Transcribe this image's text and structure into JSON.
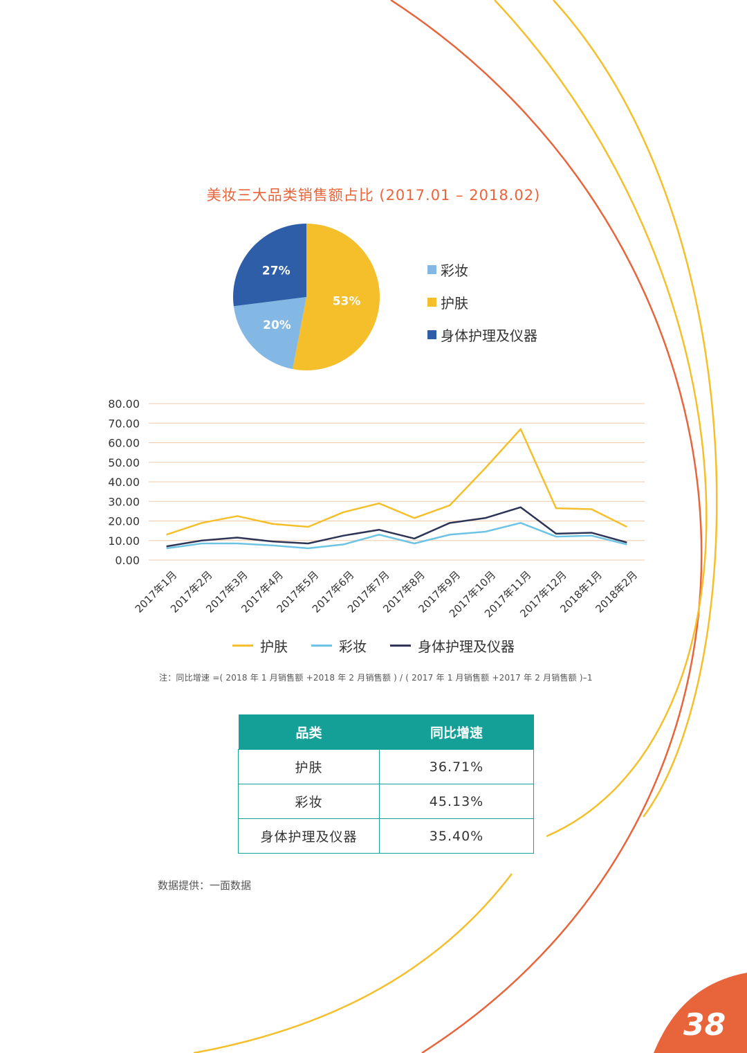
{
  "pie_title": "美妆三大品类销售额占比 (2017.01 –  2018.02)",
  "colors": {
    "skincare": "#f4bf2a",
    "makeup": "#84b8e4",
    "body": "#2f5ea8",
    "line_makeup": "#6cc3e3",
    "line_body": "#2d3456",
    "accent_orange": "#e8643a",
    "grid": "#f0c8a8",
    "teal": "#14a097"
  },
  "chart_data": [
    {
      "type": "pie",
      "title": "美妆三大品类销售额占比 (2017.01 –  2018.02)",
      "slices": [
        {
          "label": "护肤",
          "value": 53,
          "text": "53%",
          "color": "#f4bf2a"
        },
        {
          "label": "彩妆",
          "value": 20,
          "text": "20%",
          "color": "#84b8e4"
        },
        {
          "label": "身体护理及仪器",
          "value": 27,
          "text": "27%",
          "color": "#2f5ea8"
        }
      ],
      "legend": [
        "彩妆",
        "护肤",
        "身体护理及仪器"
      ],
      "legend_colors": [
        "#84b8e4",
        "#f4bf2a",
        "#2f5ea8"
      ]
    },
    {
      "type": "line",
      "categories": [
        "2017年1月",
        "2017年2月",
        "2017年3月",
        "2017年4月",
        "2017年5月",
        "2017年6月",
        "2017年7月",
        "2017年8月",
        "2017年9月",
        "2017年10月",
        "2017年11月",
        "2017年12月",
        "2018年1月",
        "2018年2月"
      ],
      "ylim": [
        0,
        80
      ],
      "yticks": [
        "0.00",
        "10.00",
        "20.00",
        "30.00",
        "40.00",
        "50.00",
        "60.00",
        "70.00",
        "80.00"
      ],
      "series": [
        {
          "name": "护肤",
          "color": "#f4bf2a",
          "values": [
            13,
            19,
            22.5,
            18.5,
            17,
            24.5,
            29,
            21.5,
            28,
            47,
            67,
            26.5,
            26,
            17
          ]
        },
        {
          "name": "彩妆",
          "color": "#6cc3e3",
          "values": [
            6,
            8.5,
            8.5,
            7.5,
            6,
            8,
            13,
            8.5,
            13,
            14.5,
            19,
            12,
            12.5,
            8
          ]
        },
        {
          "name": "身体护理及仪器",
          "color": "#2d3456",
          "values": [
            7,
            10,
            11.5,
            9.5,
            8.5,
            12.5,
            15.5,
            11,
            19,
            21.5,
            27,
            13.5,
            14,
            9
          ]
        }
      ],
      "xlabel": "",
      "ylabel": ""
    }
  ],
  "note": "注：同比增速 =( 2018 年 1 月销售额 +2018 年 2 月销售额 ) / ( 2017 年 1 月销售额 +2017 年 2 月销售额 )–1",
  "table": {
    "headers": [
      "品类",
      "同比增速"
    ],
    "rows": [
      [
        "护肤",
        "36.71%"
      ],
      [
        "彩妆",
        "45.13%"
      ],
      [
        "身体护理及仪器",
        "35.40%"
      ]
    ]
  },
  "source": "数据提供：一面数据",
  "page_number": "38"
}
